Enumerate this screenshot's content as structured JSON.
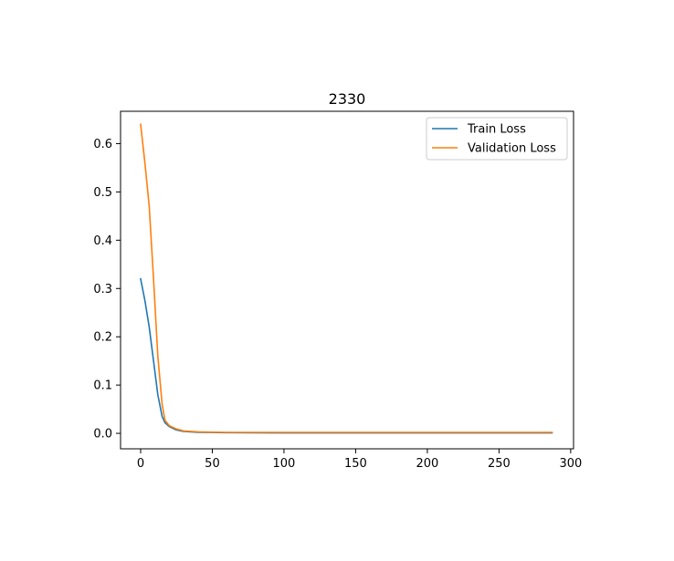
{
  "chart_data": {
    "type": "line",
    "title": "2330",
    "xlabel": "",
    "ylabel": "",
    "xlim": [
      -14,
      302
    ],
    "ylim": [
      -0.032,
      0.667
    ],
    "xticks": [
      0,
      50,
      100,
      150,
      200,
      250,
      300
    ],
    "xtick_labels": [
      "0",
      "50",
      "100",
      "150",
      "200",
      "250",
      "300"
    ],
    "yticks": [
      0.0,
      0.1,
      0.2,
      0.3,
      0.4,
      0.5,
      0.6
    ],
    "ytick_labels": [
      "0.0",
      "0.1",
      "0.2",
      "0.3",
      "0.4",
      "0.5",
      "0.6"
    ],
    "grid": false,
    "legend_position": "upper right",
    "series": [
      {
        "name": "Train Loss",
        "color": "#1f77b4",
        "x": [
          0,
          3,
          6,
          9,
          12,
          15,
          17,
          20,
          25,
          30,
          35,
          40,
          50,
          60,
          80,
          100,
          150,
          200,
          250,
          287
        ],
        "y": [
          0.32,
          0.275,
          0.22,
          0.15,
          0.08,
          0.035,
          0.022,
          0.014,
          0.007,
          0.004,
          0.003,
          0.002,
          0.0018,
          0.0015,
          0.0012,
          0.001,
          0.001,
          0.001,
          0.001,
          0.001
        ]
      },
      {
        "name": "Validation Loss",
        "color": "#ff7f0e",
        "x": [
          0,
          3,
          6,
          9,
          12,
          15,
          17,
          20,
          25,
          30,
          35,
          40,
          50,
          60,
          80,
          100,
          150,
          200,
          250,
          287
        ],
        "y": [
          0.64,
          0.56,
          0.47,
          0.32,
          0.16,
          0.06,
          0.027,
          0.016,
          0.009,
          0.005,
          0.004,
          0.003,
          0.0025,
          0.002,
          0.002,
          0.002,
          0.002,
          0.002,
          0.002,
          0.002
        ]
      }
    ]
  }
}
